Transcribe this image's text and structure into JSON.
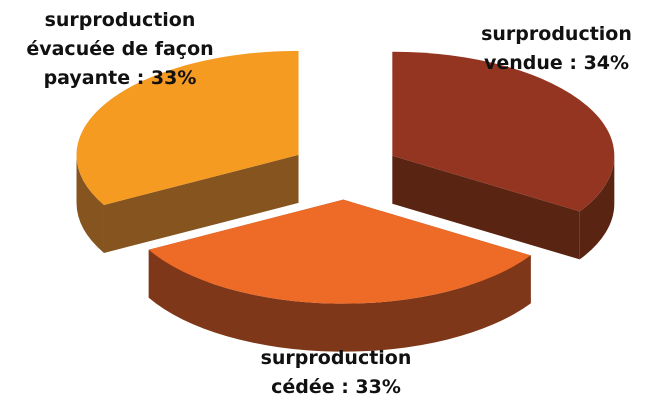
{
  "chart_data": {
    "type": "pie",
    "style": "exploded 3d",
    "slices": [
      {
        "label": "surproduction\nvendue : 34%",
        "value": 34,
        "color": "#943521",
        "side_color": "#5a2413"
      },
      {
        "label": "surproduction\ncédée : 33%",
        "value": 33,
        "color": "#ee6a27",
        "side_color": "#7e3718"
      },
      {
        "label": "surproduction\névacuée de façon\npayante : 33%",
        "value": 33,
        "color": "#f59b22",
        "side_color": "#85541f"
      }
    ]
  }
}
